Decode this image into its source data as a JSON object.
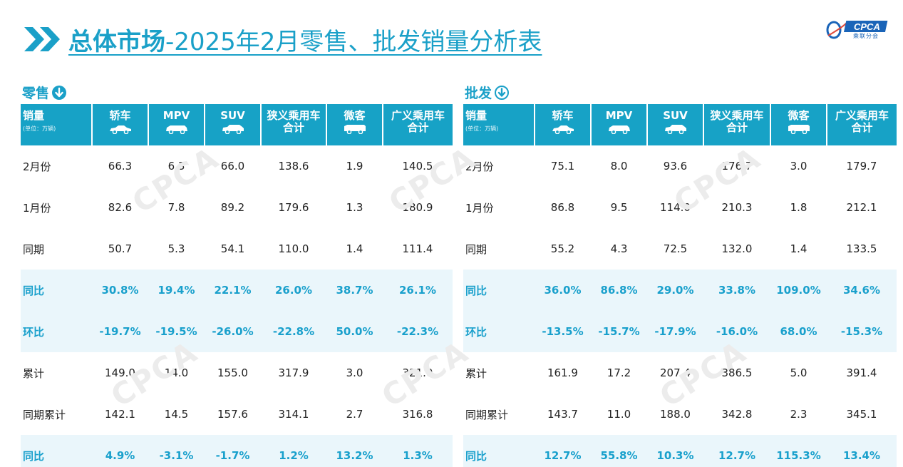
{
  "title": {
    "bold": "总体市场",
    "rest": "-2025年2月零售、批发销量分析表"
  },
  "logo": {
    "text": "CPCA",
    "sub": "乘联分会"
  },
  "watermark_text": "CPCA",
  "columns": {
    "corner": "销量",
    "unit": "(单位：万辆)",
    "headers": [
      {
        "line1": "轿车",
        "line2": "",
        "icon": "sedan-icon"
      },
      {
        "line1": "MPV",
        "line2": "",
        "icon": "mpv-icon"
      },
      {
        "line1": "SUV",
        "line2": "",
        "icon": "suv-icon"
      },
      {
        "line1": "狭义乘用车",
        "line2": "合计",
        "icon": ""
      },
      {
        "line1": "微客",
        "line2": "",
        "icon": "minivan-icon"
      },
      {
        "line1": "广义乘用车",
        "line2": "合计",
        "icon": ""
      }
    ]
  },
  "retail": {
    "label": "零售",
    "rows": [
      {
        "label": "2月份",
        "highlight": false,
        "values": [
          "66.3",
          "6.3",
          "66.0",
          "138.6",
          "1.9",
          "140.5"
        ]
      },
      {
        "label": "1月份",
        "highlight": false,
        "values": [
          "82.6",
          "7.8",
          "89.2",
          "179.6",
          "1.3",
          "180.9"
        ]
      },
      {
        "label": "同期",
        "highlight": false,
        "values": [
          "50.7",
          "5.3",
          "54.1",
          "110.0",
          "1.4",
          "111.4"
        ]
      },
      {
        "label": "同比",
        "highlight": true,
        "values": [
          "30.8%",
          "19.4%",
          "22.1%",
          "26.0%",
          "38.7%",
          "26.1%"
        ]
      },
      {
        "label": "环比",
        "highlight": true,
        "values": [
          "-19.7%",
          "-19.5%",
          "-26.0%",
          "-22.8%",
          "50.0%",
          "-22.3%"
        ]
      },
      {
        "label": "累计",
        "highlight": false,
        "values": [
          "149.0",
          "14.0",
          "155.0",
          "317.9",
          "3.0",
          "321.0"
        ]
      },
      {
        "label": "同期累计",
        "highlight": false,
        "values": [
          "142.1",
          "14.5",
          "157.6",
          "314.1",
          "2.7",
          "316.8"
        ]
      },
      {
        "label": "同比",
        "highlight": true,
        "values": [
          "4.9%",
          "-3.1%",
          "-1.7%",
          "1.2%",
          "13.2%",
          "1.3%"
        ]
      }
    ]
  },
  "wholesale": {
    "label": "批发",
    "rows": [
      {
        "label": "2月份",
        "highlight": false,
        "values": [
          "75.1",
          "8.0",
          "93.6",
          "176.7",
          "3.0",
          "179.7"
        ]
      },
      {
        "label": "1月份",
        "highlight": false,
        "values": [
          "86.8",
          "9.5",
          "114.0",
          "210.3",
          "1.8",
          "212.1"
        ]
      },
      {
        "label": "同期",
        "highlight": false,
        "values": [
          "55.2",
          "4.3",
          "72.5",
          "132.0",
          "1.4",
          "133.5"
        ]
      },
      {
        "label": "同比",
        "highlight": true,
        "values": [
          "36.0%",
          "86.8%",
          "29.0%",
          "33.8%",
          "109.0%",
          "34.6%"
        ]
      },
      {
        "label": "环比",
        "highlight": true,
        "values": [
          "-13.5%",
          "-15.7%",
          "-17.9%",
          "-16.0%",
          "68.0%",
          "-15.3%"
        ]
      },
      {
        "label": "累计",
        "highlight": false,
        "values": [
          "161.9",
          "17.2",
          "207.4",
          "386.5",
          "5.0",
          "391.4"
        ]
      },
      {
        "label": "同期累计",
        "highlight": false,
        "values": [
          "143.7",
          "11.0",
          "188.0",
          "342.8",
          "2.3",
          "345.1"
        ]
      },
      {
        "label": "同比",
        "highlight": true,
        "values": [
          "12.7%",
          "55.8%",
          "10.3%",
          "12.7%",
          "115.3%",
          "13.4%"
        ]
      }
    ]
  },
  "colors": {
    "accent": "#17a2c6",
    "highlight_text": "#19a0cc",
    "highlight_bg": "#eaf6fb"
  }
}
